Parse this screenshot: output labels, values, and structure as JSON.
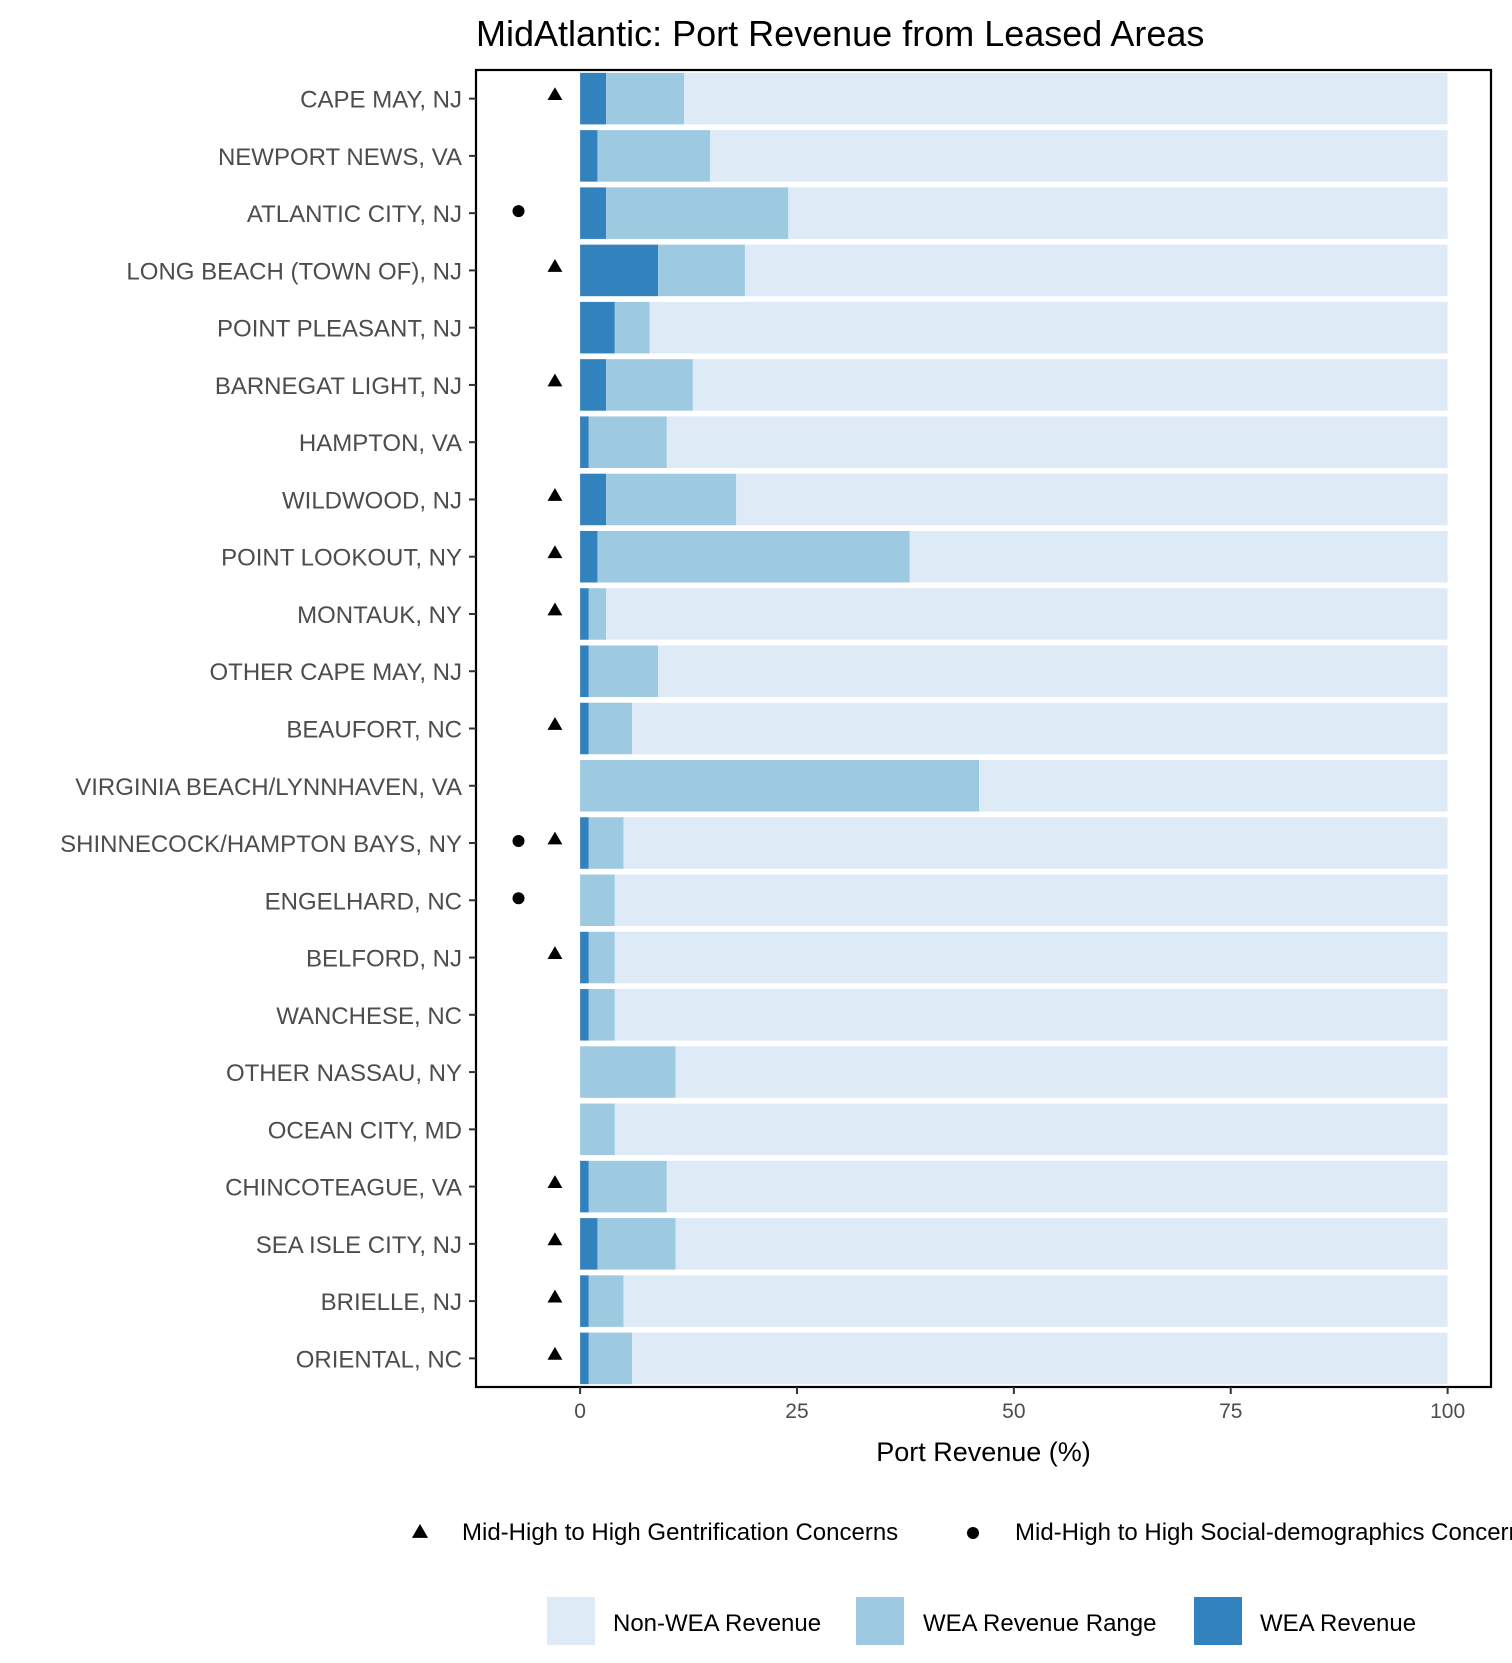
{
  "chart_data": {
    "type": "bar",
    "orientation": "horizontal",
    "stacked": true,
    "title": "MidAtlantic: Port Revenue from Leased Areas",
    "xlabel": "Port Revenue (%)",
    "ylabel": "",
    "xlim": [
      -12,
      105
    ],
    "xticks": [
      0,
      25,
      50,
      75,
      100
    ],
    "grid": false,
    "legend_position": "bottom",
    "categories": [
      "CAPE MAY, NJ",
      "NEWPORT NEWS, VA",
      "ATLANTIC CITY, NJ",
      "LONG BEACH (TOWN OF), NJ",
      "POINT PLEASANT, NJ",
      "BARNEGAT LIGHT, NJ",
      "HAMPTON, VA",
      "WILDWOOD, NJ",
      "POINT LOOKOUT, NY",
      "MONTAUK, NY",
      "OTHER CAPE MAY, NJ",
      "BEAUFORT, NC",
      "VIRGINIA BEACH/LYNNHAVEN, VA",
      "SHINNECOCK/HAMPTON BAYS, NY",
      "ENGELHARD, NC",
      "BELFORD, NJ",
      "WANCHESE, NC",
      "OTHER NASSAU, NY",
      "OCEAN CITY, MD",
      "CHINCOTEAGUE, VA",
      "SEA ISLE CITY, NJ",
      "BRIELLE, NJ",
      "ORIENTAL, NC"
    ],
    "series": [
      {
        "name": "WEA Revenue",
        "color": "#3182bd",
        "values": [
          3,
          2,
          3,
          9,
          4,
          3,
          1,
          3,
          2,
          1,
          1,
          1,
          0,
          1,
          0,
          1,
          1,
          0,
          0,
          1,
          2,
          1,
          1
        ]
      },
      {
        "name": "WEA Revenue Range",
        "color": "#9ecae1",
        "values": [
          9,
          13,
          21,
          10,
          4,
          10,
          9,
          15,
          36,
          2,
          8,
          5,
          46,
          4,
          4,
          3,
          3,
          11,
          4,
          9,
          9,
          4,
          5
        ]
      },
      {
        "name": "Non-WEA Revenue",
        "color": "#deebf7",
        "values": [
          88,
          85,
          76,
          81,
          92,
          87,
          90,
          82,
          62,
          97,
          91,
          94,
          54,
          95,
          96,
          96,
          96,
          89,
          96,
          90,
          89,
          95,
          94
        ]
      }
    ],
    "markers": {
      "gentrification": [
        true,
        false,
        false,
        true,
        false,
        true,
        false,
        true,
        true,
        true,
        false,
        true,
        false,
        true,
        false,
        true,
        false,
        false,
        false,
        true,
        true,
        true,
        true
      ],
      "social_demographics": [
        false,
        false,
        true,
        false,
        false,
        false,
        false,
        false,
        false,
        false,
        false,
        false,
        false,
        true,
        true,
        false,
        false,
        false,
        false,
        false,
        false,
        false,
        false
      ]
    },
    "marker_legend": [
      {
        "symbol": "triangle",
        "label": "Mid-High to High Gentrification Concerns"
      },
      {
        "symbol": "circle",
        "label": "Mid-High to High Social-demographics Concerns"
      }
    ],
    "fill_legend": [
      {
        "label": "Non-WEA Revenue",
        "color": "#deebf7"
      },
      {
        "label": "WEA Revenue Range",
        "color": "#9ecae1"
      },
      {
        "label": "WEA Revenue",
        "color": "#3182bd"
      }
    ]
  }
}
